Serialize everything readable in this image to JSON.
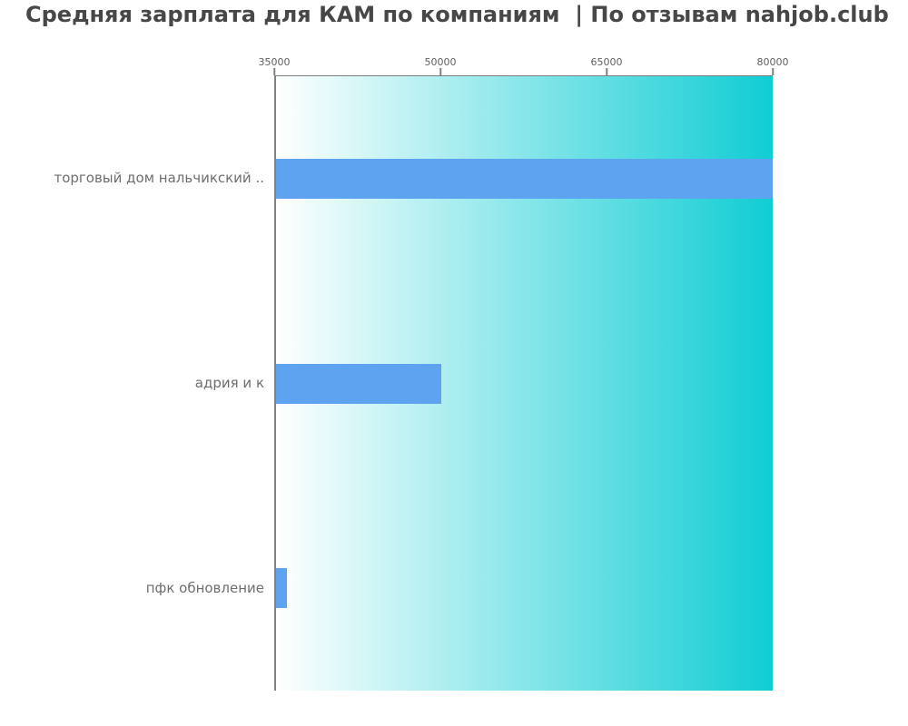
{
  "title": "Средняя зарплата для КАМ по компаниям  | По отзывам nahjob.club",
  "colors": {
    "bar": "#5ea3f0",
    "plot_gradient_left": "#ffffff",
    "plot_gradient_right": "#10cdd4",
    "axis_line": "#808080",
    "title_text": "#474747",
    "tick_text": "#5f5f5f",
    "category_text": "#6e6e6e"
  },
  "chart_data": {
    "type": "bar",
    "orientation": "horizontal",
    "title": "Средняя зарплата для КАМ по компаниям  | По отзывам nahjob.club",
    "categories": [
      "торговый дом нальчикский ..",
      "адрия и к",
      "пфк обновление"
    ],
    "values": [
      80000,
      50000,
      36000
    ],
    "xlabel": "",
    "ylabel": "",
    "xlim": [
      35000,
      80000
    ],
    "xticks": [
      35000,
      50000,
      65000,
      80000
    ],
    "xtick_position": "top",
    "grid": false,
    "legend": false,
    "plot_background": "linear horizontal gradient, white (left) to teal (right)"
  }
}
